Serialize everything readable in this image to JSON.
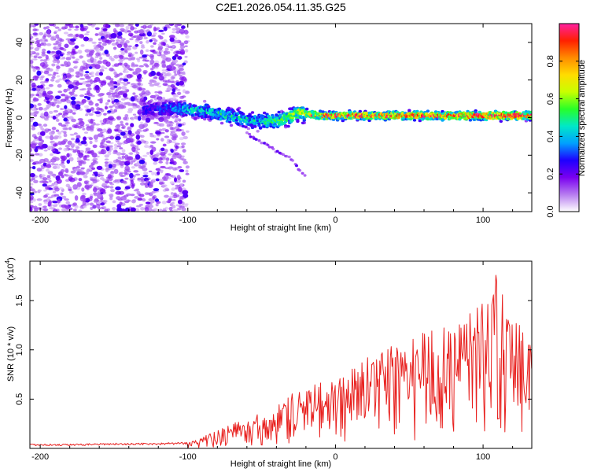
{
  "figure_title": "C2E1.2026.054.11.35.G25",
  "chart_data": [
    {
      "type": "heatmap",
      "title": "C2E1.2026.054.11.35.G25",
      "xlabel": "Height of straight line (km)",
      "ylabel": "Frequency (Hz)",
      "xlim": [
        -207,
        133
      ],
      "ylim": [
        -50,
        50
      ],
      "x_ticks": [
        -200,
        -100,
        0,
        100
      ],
      "x_tick_labels": [
        "-200",
        "-100",
        "0",
        "100"
      ],
      "y_ticks": [
        -40,
        -20,
        0,
        20,
        40
      ],
      "y_tick_labels": [
        "-40",
        "-20",
        "0",
        "20",
        "40"
      ],
      "colorbar": {
        "label": "Normalized spectral amplitude",
        "range": [
          0.0,
          1.0
        ],
        "ticks": [
          0.0,
          0.2,
          0.4,
          0.6,
          0.8
        ],
        "tick_labels": [
          "0.0",
          "0.2",
          "0.4",
          "0.6",
          "0.8"
        ],
        "colors": [
          "#ffffff",
          "#b77cf0",
          "#7a00f0",
          "#1e00ff",
          "#00a0ff",
          "#00e8c8",
          "#28ff28",
          "#c8ff00",
          "#ffdc00",
          "#ff8c00",
          "#ff2000",
          "#ff20a0"
        ]
      },
      "noise_region_x": [
        -207,
        -100
      ],
      "main_band": [
        {
          "x": -130,
          "f": 4,
          "amp": 0.3
        },
        {
          "x": -110,
          "f": 5,
          "amp": 0.4
        },
        {
          "x": -95,
          "f": 4,
          "amp": 0.5
        },
        {
          "x": -85,
          "f": 3,
          "amp": 0.5
        },
        {
          "x": -75,
          "f": 1,
          "amp": 0.55
        },
        {
          "x": -65,
          "f": 0,
          "amp": 0.5
        },
        {
          "x": -55,
          "f": -2,
          "amp": 0.5
        },
        {
          "x": -45,
          "f": -2,
          "amp": 0.55
        },
        {
          "x": -35,
          "f": -1,
          "amp": 0.6
        },
        {
          "x": -30,
          "f": 1,
          "amp": 0.65
        },
        {
          "x": -25,
          "f": 3,
          "amp": 0.7
        },
        {
          "x": -20,
          "f": 2,
          "amp": 0.75
        },
        {
          "x": -10,
          "f": 1,
          "amp": 0.8
        },
        {
          "x": 0,
          "f": 1,
          "amp": 0.85
        },
        {
          "x": 20,
          "f": 1,
          "amp": 0.9
        },
        {
          "x": 40,
          "f": 1,
          "amp": 0.9
        },
        {
          "x": 60,
          "f": 1,
          "amp": 0.9
        },
        {
          "x": 80,
          "f": 1,
          "amp": 0.9
        },
        {
          "x": 100,
          "f": 1,
          "amp": 0.95
        },
        {
          "x": 120,
          "f": 1,
          "amp": 0.95
        },
        {
          "x": 133,
          "f": 1,
          "amp": 0.9
        }
      ],
      "side_branch": [
        {
          "x": -60,
          "f": -8
        },
        {
          "x": -50,
          "f": -13
        },
        {
          "x": -40,
          "f": -18
        },
        {
          "x": -30,
          "f": -22
        },
        {
          "x": -25,
          "f": -27
        },
        {
          "x": -20,
          "f": -31
        }
      ]
    },
    {
      "type": "line",
      "title": "",
      "xlabel": "Height of straight line (km)",
      "ylabel": "SNR (10 * v/v)",
      "y_scale_label": "(x10",
      "y_scale_exponent": "4",
      "xlim": [
        -207,
        133
      ],
      "ylim": [
        0,
        1.9
      ],
      "x_ticks": [
        -200,
        -100,
        0,
        100
      ],
      "x_tick_labels": [
        "-200",
        "-100",
        "0",
        "100"
      ],
      "y_ticks": [
        0.5,
        1.0,
        1.5
      ],
      "y_tick_labels": [
        "0.5",
        "1.0",
        "1.5"
      ],
      "color": "#e8201e",
      "series": [
        {
          "name": "SNR",
          "x": [
            -207,
            -180,
            -150,
            -120,
            -100,
            -90,
            -80,
            -70,
            -60,
            -50,
            -40,
            -30,
            -20,
            -10,
            0,
            10,
            20,
            30,
            40,
            50,
            60,
            70,
            80,
            90,
            100,
            110,
            120,
            133
          ],
          "envelope": [
            0.04,
            0.04,
            0.05,
            0.05,
            0.06,
            0.12,
            0.18,
            0.25,
            0.32,
            0.38,
            0.45,
            0.55,
            0.62,
            0.68,
            0.74,
            0.8,
            0.9,
            1.02,
            1.1,
            1.15,
            1.18,
            1.22,
            1.3,
            1.35,
            1.55,
            1.8,
            1.45,
            1.05
          ]
        }
      ]
    }
  ]
}
